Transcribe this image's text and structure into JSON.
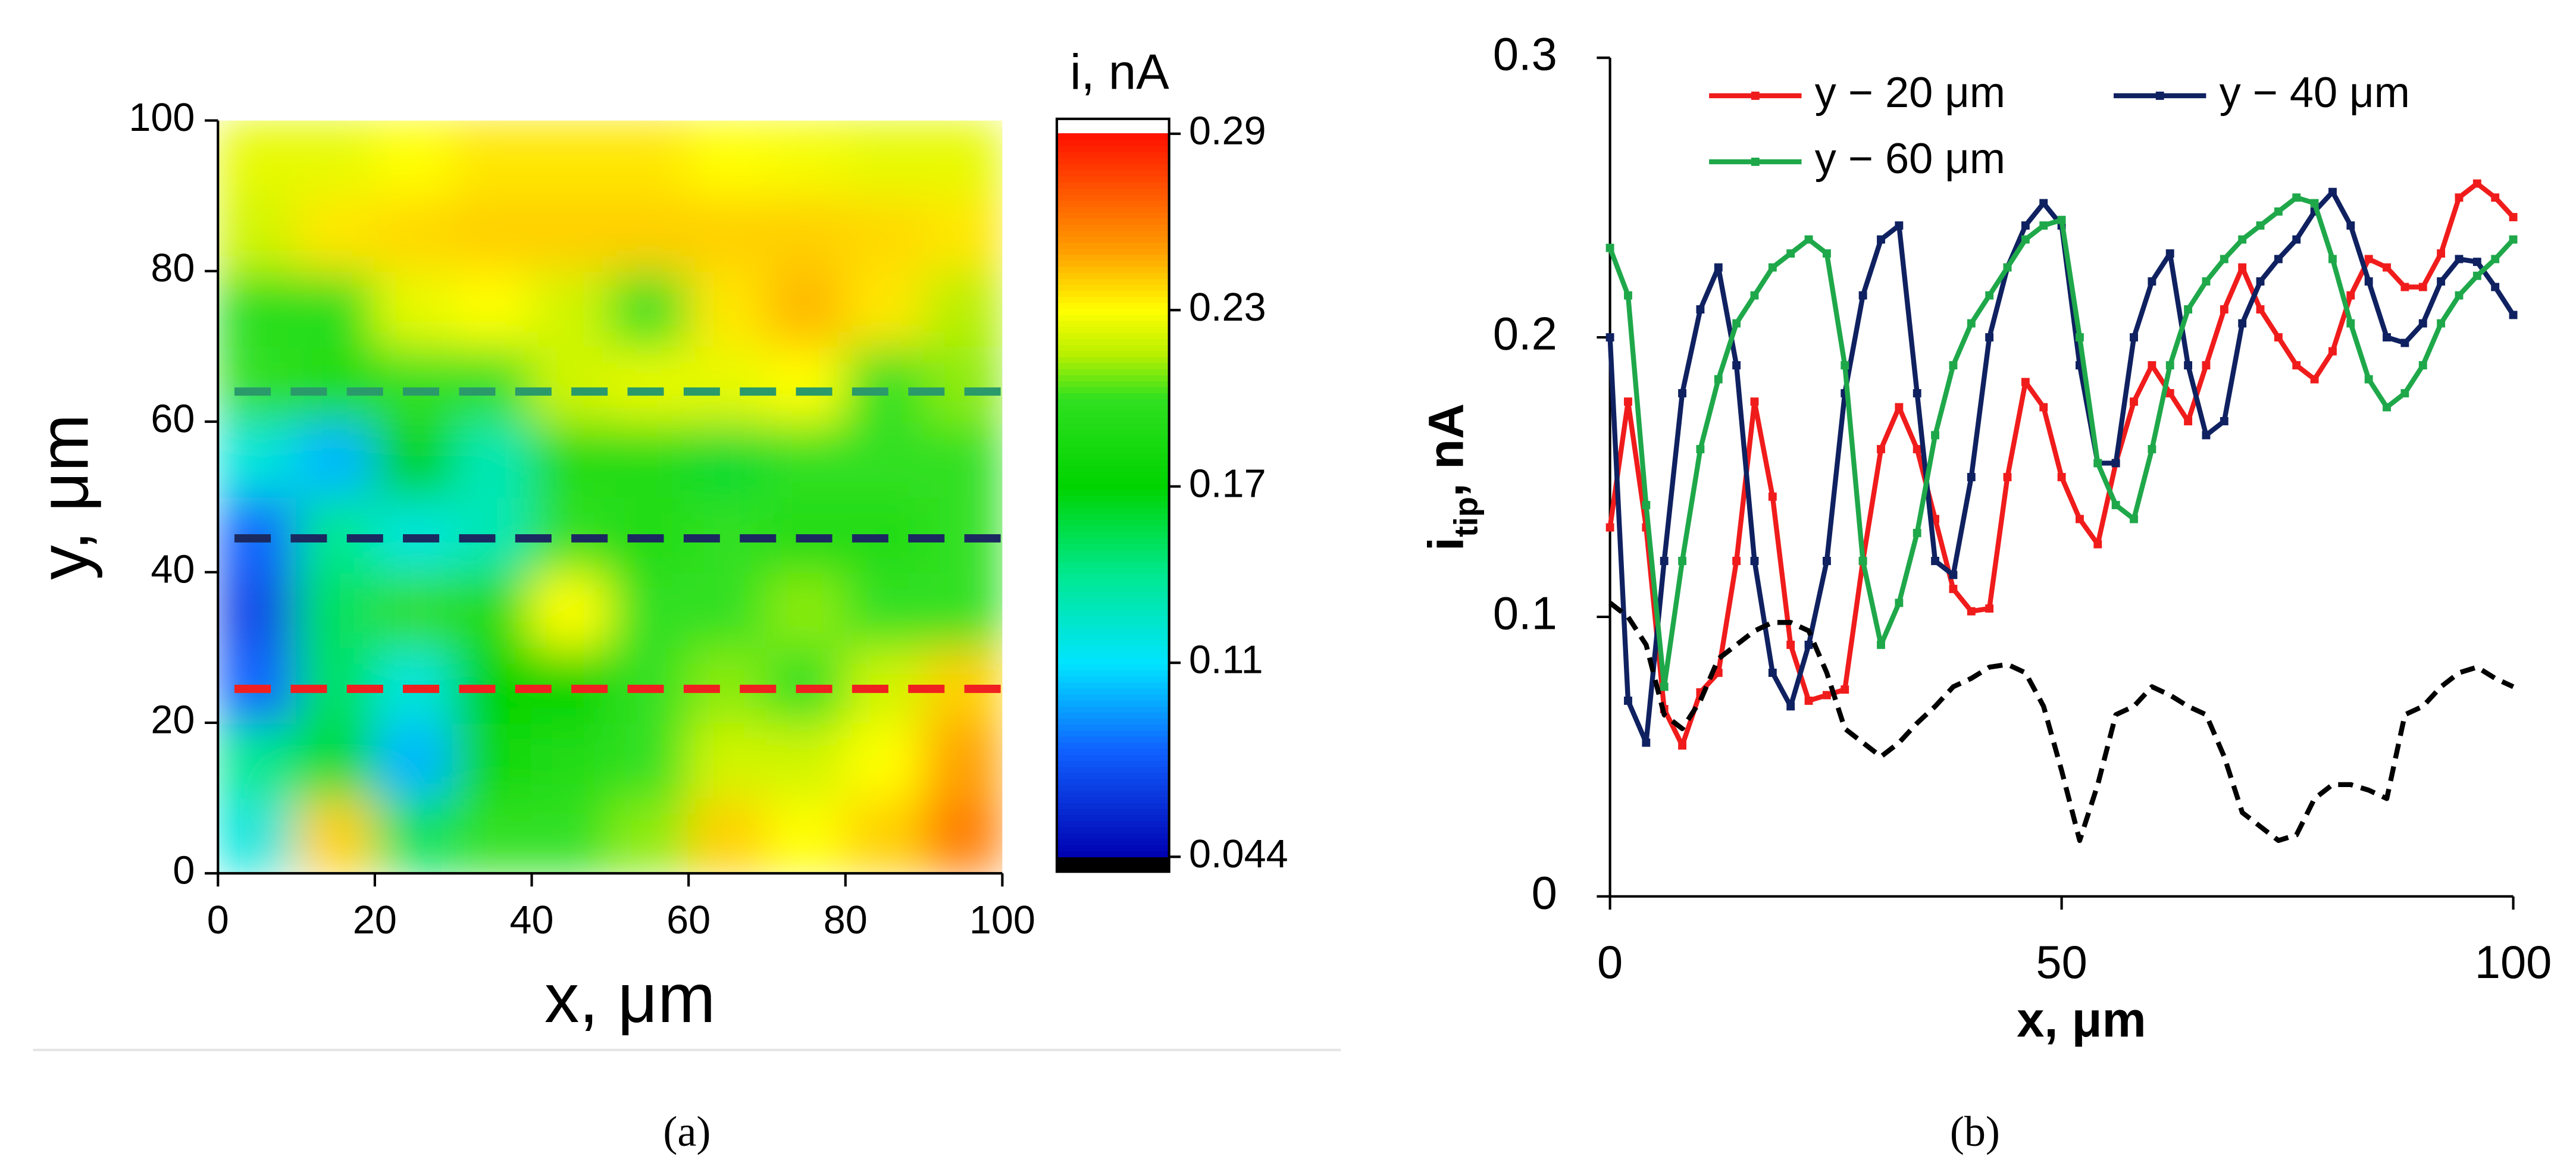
{
  "chart_data": [
    {
      "type": "heatmap",
      "caption": "(a)",
      "x_label": "x, μm",
      "y_label": "y, μm",
      "xlim": [
        0,
        100
      ],
      "ylim": [
        0,
        100
      ],
      "xticks": [
        0,
        20,
        40,
        60,
        80,
        100
      ],
      "yticks": [
        0,
        20,
        40,
        60,
        80,
        100
      ],
      "x": [
        5,
        15,
        25,
        35,
        45,
        55,
        65,
        75,
        85,
        95
      ],
      "y": [
        5,
        15,
        25,
        35,
        45,
        55,
        65,
        75,
        85,
        95
      ],
      "z": [
        [
          0.12,
          0.24,
          0.15,
          0.2,
          0.2,
          0.21,
          0.24,
          0.23,
          0.24,
          0.26
        ],
        [
          0.14,
          0.16,
          0.1,
          0.18,
          0.19,
          0.2,
          0.22,
          0.22,
          0.23,
          0.25
        ],
        [
          0.08,
          0.15,
          0.12,
          0.17,
          0.17,
          0.2,
          0.21,
          0.2,
          0.22,
          0.24
        ],
        [
          0.07,
          0.15,
          0.2,
          0.19,
          0.23,
          0.2,
          0.2,
          0.21,
          0.2,
          0.2
        ],
        [
          0.08,
          0.14,
          0.12,
          0.13,
          0.2,
          0.19,
          0.2,
          0.19,
          0.19,
          0.2
        ],
        [
          0.12,
          0.1,
          0.17,
          0.13,
          0.19,
          0.19,
          0.16,
          0.2,
          0.2,
          0.2
        ],
        [
          0.2,
          0.19,
          0.2,
          0.2,
          0.22,
          0.225,
          0.225,
          0.23,
          0.2,
          0.21
        ],
        [
          0.195,
          0.195,
          0.225,
          0.23,
          0.22,
          0.2,
          0.235,
          0.245,
          0.235,
          0.215
        ],
        [
          0.22,
          0.235,
          0.238,
          0.24,
          0.24,
          0.24,
          0.24,
          0.24,
          0.238,
          0.235
        ],
        [
          0.225,
          0.225,
          0.23,
          0.235,
          0.235,
          0.235,
          0.23,
          0.228,
          0.225,
          0.225
        ]
      ],
      "colorbar": {
        "title": "i, nA",
        "lim": [
          0.044,
          0.29
        ],
        "ticks": [
          0.044,
          0.11,
          0.17,
          0.23,
          0.29
        ],
        "colorscale": [
          [
            0.044,
            "#0000b0"
          ],
          [
            0.08,
            "#1060ff"
          ],
          [
            0.11,
            "#00e4ff"
          ],
          [
            0.14,
            "#00e890"
          ],
          [
            0.17,
            "#00d400"
          ],
          [
            0.2,
            "#30e020"
          ],
          [
            0.215,
            "#b8f000"
          ],
          [
            0.23,
            "#ffff00"
          ],
          [
            0.25,
            "#ffa000"
          ],
          [
            0.29,
            "#ff1000"
          ]
        ],
        "under_color": "#000000",
        "over_color": "#ffffff"
      },
      "lines": [
        {
          "y": 24.5,
          "color": "#f02020"
        },
        {
          "y": 44.5,
          "color": "#1a2a60"
        },
        {
          "y": 64,
          "color": "#2a9a6a"
        }
      ]
    },
    {
      "type": "line",
      "caption": "(b)",
      "x_label": "x, μm",
      "y_label": {
        "main": "i",
        "sub": "tip",
        "rest": ", nA"
      },
      "xlim": [
        0,
        100
      ],
      "ylim": [
        0,
        0.3
      ],
      "xticks": [
        0,
        50,
        100
      ],
      "yticks": [
        0,
        0.1,
        0.2,
        0.3
      ],
      "x": [
        0,
        2,
        4,
        6,
        8,
        10,
        12,
        14,
        16,
        18,
        20,
        22,
        24,
        26,
        28,
        30,
        32,
        34,
        36,
        38,
        40,
        42,
        44,
        46,
        48,
        50,
        52,
        54,
        56,
        58,
        60,
        62,
        64,
        66,
        68,
        70,
        72,
        74,
        76,
        78,
        80,
        82,
        84,
        86,
        88,
        90,
        92,
        94,
        96,
        98,
        100
      ],
      "series": [
        {
          "name": "y − 20 μm",
          "color": "#f01c1c",
          "marker": "square",
          "values": [
            0.132,
            0.177,
            0.132,
            0.067,
            0.054,
            0.073,
            0.08,
            0.12,
            0.177,
            0.143,
            0.09,
            0.07,
            0.072,
            0.074,
            0.12,
            0.16,
            0.175,
            0.16,
            0.135,
            0.11,
            0.102,
            0.103,
            0.15,
            0.184,
            0.175,
            0.15,
            0.135,
            0.126,
            0.155,
            0.177,
            0.19,
            0.18,
            0.17,
            0.19,
            0.21,
            0.225,
            0.21,
            0.2,
            0.19,
            0.185,
            0.195,
            0.215,
            0.228,
            0.225,
            0.218,
            0.218,
            0.23,
            0.25,
            0.255,
            0.25,
            0.243
          ]
        },
        {
          "name": "y − 40 μm",
          "color": "#0f2160",
          "marker": "square",
          "values": [
            0.2,
            0.07,
            0.055,
            0.12,
            0.18,
            0.21,
            0.225,
            0.19,
            0.12,
            0.08,
            0.068,
            0.09,
            0.12,
            0.18,
            0.215,
            0.235,
            0.24,
            0.18,
            0.12,
            0.115,
            0.15,
            0.2,
            0.225,
            0.24,
            0.248,
            0.24,
            0.19,
            0.155,
            0.155,
            0.2,
            0.22,
            0.23,
            0.19,
            0.165,
            0.17,
            0.205,
            0.22,
            0.228,
            0.235,
            0.245,
            0.252,
            0.24,
            0.22,
            0.2,
            0.198,
            0.205,
            0.22,
            0.228,
            0.227,
            0.218,
            0.208
          ]
        },
        {
          "name": "y − 60 μm",
          "color": "#1fa84a",
          "marker": "square",
          "values": [
            0.232,
            0.215,
            0.14,
            0.075,
            0.12,
            0.16,
            0.185,
            0.205,
            0.215,
            0.225,
            0.23,
            0.235,
            0.23,
            0.19,
            0.12,
            0.09,
            0.105,
            0.13,
            0.165,
            0.19,
            0.205,
            0.215,
            0.225,
            0.235,
            0.24,
            0.242,
            0.2,
            0.155,
            0.14,
            0.135,
            0.16,
            0.19,
            0.21,
            0.22,
            0.228,
            0.235,
            0.24,
            0.245,
            0.25,
            0.248,
            0.228,
            0.205,
            0.185,
            0.175,
            0.18,
            0.19,
            0.205,
            0.215,
            0.222,
            0.228,
            0.235
          ]
        },
        {
          "color": "#000000",
          "dash": true,
          "values": [
            0.105,
            0.1,
            0.09,
            0.065,
            0.06,
            0.07,
            0.085,
            0.09,
            0.095,
            0.098,
            0.098,
            0.095,
            0.08,
            0.06,
            0.055,
            0.05,
            0.055,
            0.062,
            0.068,
            0.075,
            0.078,
            0.082,
            0.083,
            0.08,
            0.068,
            0.045,
            0.02,
            0.04,
            0.065,
            0.068,
            0.075,
            0.072,
            0.068,
            0.065,
            0.05,
            0.03,
            0.025,
            0.02,
            0.022,
            0.035,
            0.04,
            0.04,
            0.038,
            0.035,
            0.065,
            0.068,
            0.075,
            0.08,
            0.082,
            0.078,
            0.075
          ]
        }
      ]
    }
  ]
}
